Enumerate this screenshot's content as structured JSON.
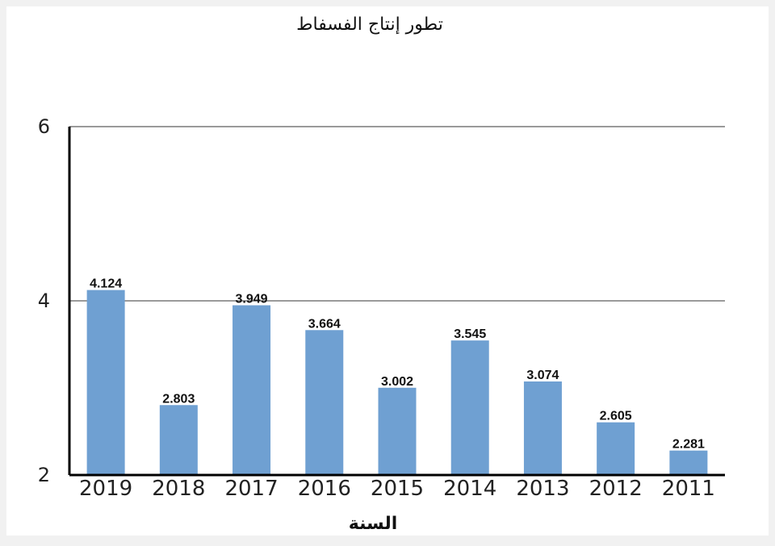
{
  "chart_data": {
    "type": "bar",
    "title": "تطور إنتاج الفسفاط",
    "xlabel": "السنة",
    "ylabel": "",
    "ylim": [
      2,
      6
    ],
    "yticks": [
      2,
      4,
      6
    ],
    "grid": true,
    "bar_color": "#6fa0d2",
    "categories": [
      "2019",
      "2018",
      "2017",
      "2016",
      "2015",
      "2014",
      "2013",
      "2012",
      "2011"
    ],
    "values": [
      4.124,
      2.803,
      3.949,
      3.664,
      3.002,
      3.545,
      3.074,
      2.605,
      2.281
    ],
    "data_labels": [
      "4.124",
      "2.803",
      "3.949",
      "3.664",
      "3.002",
      "3.545",
      "3.074",
      "2.605",
      "2.281"
    ]
  }
}
